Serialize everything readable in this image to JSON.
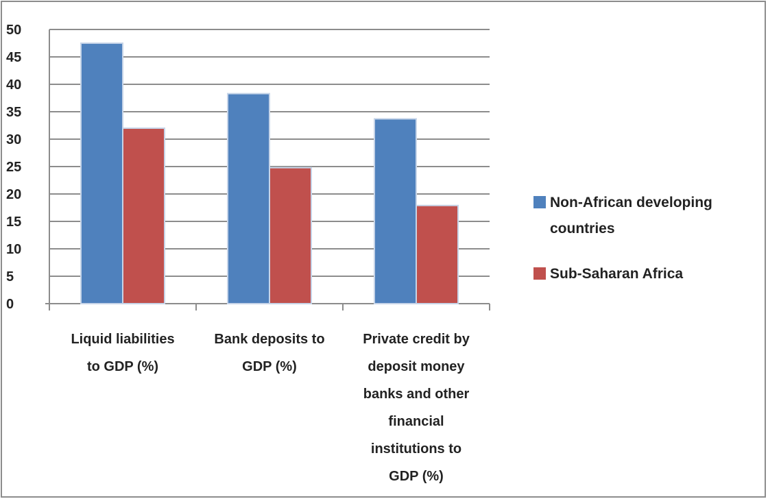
{
  "chart_data": {
    "type": "bar",
    "title": "",
    "xlabel": "",
    "ylabel": "",
    "ylim": [
      0,
      50
    ],
    "yticks": [
      "0",
      "5",
      "10",
      "15",
      "20",
      "25",
      "30",
      "35",
      "40",
      "45",
      "50"
    ],
    "grid": true,
    "legend_position": "right",
    "categories": [
      [
        "Liquid liabilities",
        "to GDP (%)"
      ],
      [
        "Bank deposits to",
        "GDP (%)"
      ],
      [
        "Private credit by",
        "deposit money",
        "banks and other",
        "financial",
        "institutions to",
        "GDP (%)"
      ]
    ],
    "series": [
      {
        "name": [
          "Non-African developing",
          "countries"
        ],
        "color": "#4f81bd",
        "values": [
          47.5,
          38.3,
          33.7
        ]
      },
      {
        "name": [
          "Sub-Saharan Africa"
        ],
        "color": "#c0504d",
        "values": [
          32,
          24.8,
          17.9
        ]
      }
    ]
  }
}
